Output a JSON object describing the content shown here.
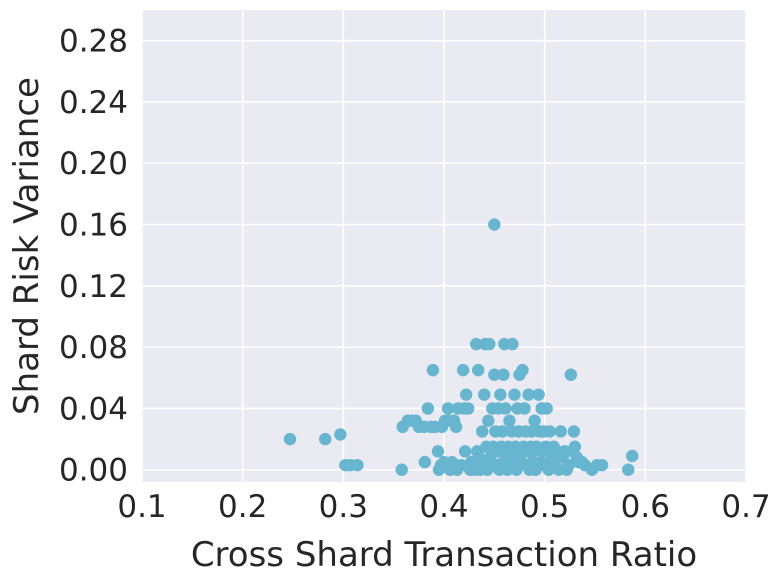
{
  "chart_data": {
    "type": "scatter",
    "title": "",
    "xlabel": "Cross Shard Transaction Ratio",
    "ylabel": "Shard Risk Variance",
    "xlim": [
      0.1,
      0.7
    ],
    "ylim": [
      -0.008,
      0.3
    ],
    "xticks": [
      0.1,
      0.2,
      0.3,
      0.4,
      0.5,
      0.6,
      0.7
    ],
    "xtick_labels": [
      "0.1",
      "0.2",
      "0.3",
      "0.4",
      "0.5",
      "0.6",
      "0.7"
    ],
    "yticks": [
      0.0,
      0.04,
      0.08,
      0.12,
      0.16,
      0.2,
      0.24,
      0.28
    ],
    "ytick_labels": [
      "0.00",
      "0.04",
      "0.08",
      "0.12",
      "0.16",
      "0.20",
      "0.24",
      "0.28"
    ],
    "grid": true,
    "background_color": "#eaeaf2",
    "grid_color": "#ffffff",
    "point_color": "#67b5cf",
    "points": [
      [
        0.247,
        0.02
      ],
      [
        0.282,
        0.02
      ],
      [
        0.297,
        0.023
      ],
      [
        0.302,
        0.003
      ],
      [
        0.307,
        0.003
      ],
      [
        0.314,
        0.003
      ],
      [
        0.358,
        0.0
      ],
      [
        0.359,
        0.028
      ],
      [
        0.364,
        0.032
      ],
      [
        0.368,
        0.032
      ],
      [
        0.372,
        0.032
      ],
      [
        0.375,
        0.028
      ],
      [
        0.38,
        0.028
      ],
      [
        0.381,
        0.005
      ],
      [
        0.384,
        0.04
      ],
      [
        0.387,
        0.028
      ],
      [
        0.389,
        0.065
      ],
      [
        0.391,
        0.028
      ],
      [
        0.394,
        0.012
      ],
      [
        0.395,
        0.0
      ],
      [
        0.397,
        0.003
      ],
      [
        0.398,
        0.028
      ],
      [
        0.4,
        0.005
      ],
      [
        0.401,
        0.032
      ],
      [
        0.404,
        0.04
      ],
      [
        0.405,
        0.032
      ],
      [
        0.406,
        0.0
      ],
      [
        0.408,
        0.005
      ],
      [
        0.41,
        0.032
      ],
      [
        0.412,
        0.028
      ],
      [
        0.413,
        0.0
      ],
      [
        0.414,
        0.04
      ],
      [
        0.417,
        0.003
      ],
      [
        0.419,
        0.065
      ],
      [
        0.42,
        0.04
      ],
      [
        0.421,
        0.012
      ],
      [
        0.422,
        0.049
      ],
      [
        0.424,
        0.04
      ],
      [
        0.426,
        0.0
      ],
      [
        0.427,
        0.005
      ],
      [
        0.43,
        0.003
      ],
      [
        0.431,
        0.0
      ],
      [
        0.432,
        0.082
      ],
      [
        0.433,
        0.012
      ],
      [
        0.434,
        0.065
      ],
      [
        0.435,
        0.008
      ],
      [
        0.436,
        0.0
      ],
      [
        0.437,
        0.003
      ],
      [
        0.438,
        0.025
      ],
      [
        0.439,
        0.005
      ],
      [
        0.44,
        0.049
      ],
      [
        0.441,
        0.082
      ],
      [
        0.442,
        0.015
      ],
      [
        0.443,
        0.0
      ],
      [
        0.444,
        0.032
      ],
      [
        0.445,
        0.082
      ],
      [
        0.446,
        0.008
      ],
      [
        0.447,
        0.003
      ],
      [
        0.448,
        0.04
      ],
      [
        0.449,
        0.015
      ],
      [
        0.45,
        0.16
      ],
      [
        0.45,
        0.062
      ],
      [
        0.451,
        0.025
      ],
      [
        0.452,
        0.003
      ],
      [
        0.453,
        0.012
      ],
      [
        0.454,
        0.04
      ],
      [
        0.455,
        0.0
      ],
      [
        0.456,
        0.049
      ],
      [
        0.457,
        0.015
      ],
      [
        0.458,
        0.025
      ],
      [
        0.459,
        0.062
      ],
      [
        0.459,
        0.005
      ],
      [
        0.46,
        0.082
      ],
      [
        0.461,
        0.04
      ],
      [
        0.462,
        0.012
      ],
      [
        0.463,
        0.0
      ],
      [
        0.464,
        0.015
      ],
      [
        0.465,
        0.032
      ],
      [
        0.466,
        0.003
      ],
      [
        0.467,
        0.025
      ],
      [
        0.468,
        0.082
      ],
      [
        0.469,
        0.008
      ],
      [
        0.47,
        0.049
      ],
      [
        0.471,
        0.015
      ],
      [
        0.472,
        0.0
      ],
      [
        0.473,
        0.04
      ],
      [
        0.474,
        0.025
      ],
      [
        0.475,
        0.062
      ],
      [
        0.476,
        0.012
      ],
      [
        0.477,
        0.005
      ],
      [
        0.478,
        0.065
      ],
      [
        0.479,
        0.015
      ],
      [
        0.48,
        0.04
      ],
      [
        0.481,
        0.025
      ],
      [
        0.482,
        0.003
      ],
      [
        0.483,
        0.012
      ],
      [
        0.484,
        0.049
      ],
      [
        0.485,
        0.0
      ],
      [
        0.486,
        0.015
      ],
      [
        0.487,
        0.025
      ],
      [
        0.488,
        0.005
      ],
      [
        0.489,
        0.012
      ],
      [
        0.49,
        0.032
      ],
      [
        0.491,
        0.0
      ],
      [
        0.492,
        0.015
      ],
      [
        0.494,
        0.049
      ],
      [
        0.495,
        0.025
      ],
      [
        0.496,
        0.005
      ],
      [
        0.497,
        0.04
      ],
      [
        0.498,
        0.012
      ],
      [
        0.499,
        0.025
      ],
      [
        0.5,
        0.003
      ],
      [
        0.501,
        0.015
      ],
      [
        0.502,
        0.04
      ],
      [
        0.503,
        0.012
      ],
      [
        0.504,
        0.0
      ],
      [
        0.505,
        0.025
      ],
      [
        0.507,
        0.008
      ],
      [
        0.509,
        0.015
      ],
      [
        0.51,
        0.003
      ],
      [
        0.512,
        0.012
      ],
      [
        0.514,
        0.0
      ],
      [
        0.516,
        0.025
      ],
      [
        0.518,
        0.008
      ],
      [
        0.52,
        0.012
      ],
      [
        0.522,
        0.0
      ],
      [
        0.524,
        0.003
      ],
      [
        0.526,
        0.062
      ],
      [
        0.528,
        0.012
      ],
      [
        0.529,
        0.025
      ],
      [
        0.53,
        0.015
      ],
      [
        0.532,
        0.008
      ],
      [
        0.534,
        0.005
      ],
      [
        0.537,
        0.005
      ],
      [
        0.54,
        0.003
      ],
      [
        0.547,
        0.0
      ],
      [
        0.552,
        0.003
      ],
      [
        0.557,
        0.003
      ],
      [
        0.583,
        0.0
      ],
      [
        0.587,
        0.009
      ]
    ]
  }
}
